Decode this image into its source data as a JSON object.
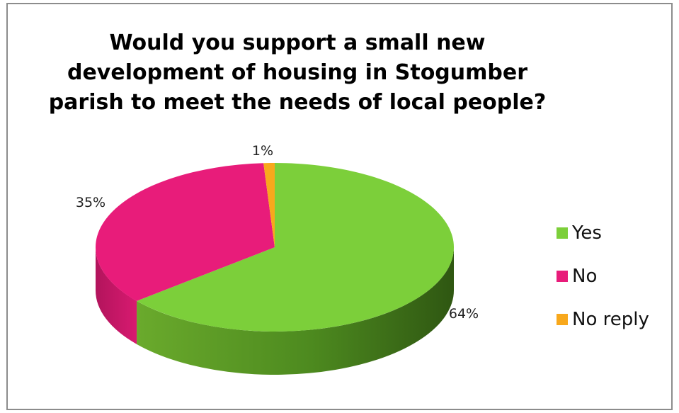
{
  "chart_data": {
    "type": "pie",
    "title": "Would you support a small new development of housing in Stogumber parish to meet the needs of local people?",
    "categories": [
      "Yes",
      "No",
      "No reply"
    ],
    "values": [
      64,
      35,
      1
    ],
    "labels": [
      "64%",
      "35%",
      "1%"
    ],
    "colors": [
      "#7ccf3a",
      "#e81c7a",
      "#f8a81c"
    ],
    "legend_position": "right",
    "three_d": true
  }
}
